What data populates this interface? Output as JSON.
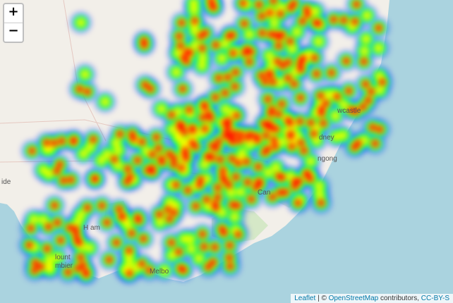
{
  "controls": {
    "zoom_in_label": "+",
    "zoom_out_label": "−"
  },
  "attribution": {
    "leaflet_label": "Leaflet",
    "separator": "| ©",
    "osm_label": "OpenStreetMap",
    "contributors_text": "contributors,",
    "license_label": "CC-BY-S"
  },
  "place_labels": [
    {
      "name": "wcastle"
    },
    {
      "name": "dney"
    },
    {
      "name": "ngong"
    },
    {
      "name": "Can"
    },
    {
      "name": "H    am"
    },
    {
      "name": "lount"
    },
    {
      "name": "mbier"
    },
    {
      "name": "Melbo"
    },
    {
      "name": "ide"
    }
  ],
  "heatmap": {
    "gradient": [
      "#0000ff",
      "#00ffff",
      "#00ff00",
      "#ffff00",
      "#ff0000"
    ]
  },
  "colors": {
    "ocean": "#aad3df",
    "land": "#f2efe9",
    "park": "#cde6be",
    "control_link": "#0078a8"
  }
}
